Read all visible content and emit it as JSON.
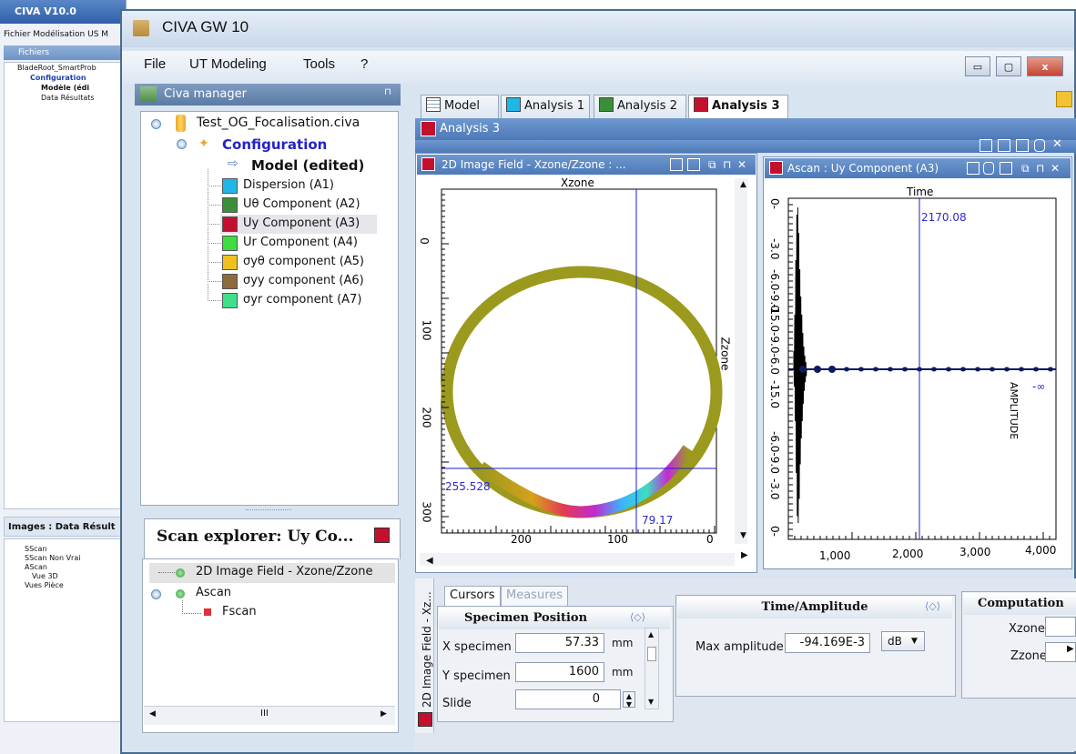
{
  "background_window": {
    "title": "CIVA V10.0",
    "menu": "Fichier  Modélisation US  M",
    "files_header": "Fichiers",
    "tree": [
      "BladeRoot_SmartProb",
      "Configuration",
      "Modèle (édi",
      "Data Résultats"
    ],
    "images_header": "Images : Data Résult",
    "images_tree": [
      "SScan",
      "SScan Non Vrai",
      "AScan",
      "Vue 3D",
      "Vues Pièce"
    ]
  },
  "window": {
    "title": "CIVA GW 10",
    "menu": [
      "File",
      "UT Modeling",
      "Tools",
      "?"
    ],
    "controls": {
      "minimize": "▭",
      "maximize": "▢",
      "close": "x"
    }
  },
  "manager": {
    "title": "Civa manager",
    "pin": "⊓",
    "file": "Test_OG_Focalisation.civa",
    "configuration": "Configuration",
    "model": "Model (edited)",
    "analyses": [
      {
        "label": "Dispersion (A1)",
        "color": "#1fb6e8"
      },
      {
        "label": "Uθ Component (A2)",
        "color": "#3b8f3b"
      },
      {
        "label": "Uy Component (A3)",
        "color": "#c4102f"
      },
      {
        "label": "Ur Component (A4)",
        "color": "#3fdc3f"
      },
      {
        "label": "σyθ component (A5)",
        "color": "#f0c020"
      },
      {
        "label": "σyy component (A6)",
        "color": "#8c6a3c"
      },
      {
        "label": "σyr component (A7)",
        "color": "#3ee08a"
      }
    ]
  },
  "scan_explorer": {
    "title": "Scan explorer: Uy Co...",
    "items": [
      "2D Image Field - Xzone/Zzone",
      "Ascan",
      "Fscan"
    ],
    "hscroll_thumb": "III"
  },
  "tabs": [
    {
      "label": "Model"
    },
    {
      "label": "Analysis 1",
      "color": "#1fb6e8"
    },
    {
      "label": "Analysis 2",
      "color": "#3b8f3b"
    },
    {
      "label": "Analysis 3",
      "color": "#c4102f"
    }
  ],
  "analysis_title": "Analysis 3",
  "image_panel": {
    "title": "2D Image Field - Xzone/Zzone : ...",
    "top_label": "Xzone",
    "right_label": "Zzone",
    "x_ticks": [
      "200",
      "100",
      "0"
    ],
    "y_ticks": [
      "0",
      "100",
      "200",
      "300"
    ],
    "cursor_h_value": "255.528",
    "cursor_v_value": "79.17",
    "vertical_tab": "2D Image Field - Xz..."
  },
  "ascan_panel": {
    "title": "Ascan : Uy Component  (A3)",
    "top_label": "Time",
    "right_label": "AMPLITUDE",
    "cursor_value": "2170.08",
    "amp_readout": "-∞",
    "x_ticks": [
      "1,000",
      "2,000",
      "3,000",
      "4,000"
    ],
    "y_ticks": [
      "0-",
      "-3.0",
      "-6.0-9.0",
      "-15.0-9.0-6.0",
      "-15.0",
      "-6.0-9.0",
      "-3.0",
      "0-"
    ]
  },
  "bottom": {
    "tabs": [
      "Cursors",
      "Measures"
    ],
    "specimen": {
      "title": "Specimen Position",
      "rows": [
        {
          "label": "X specimen",
          "value": "57.33",
          "unit": "mm"
        },
        {
          "label": "Y specimen",
          "value": "1600",
          "unit": "mm"
        },
        {
          "label": "Slide",
          "value": "0",
          "unit": ""
        }
      ]
    },
    "time_amp": {
      "title": "Time/Amplitude",
      "label": "Max amplitude",
      "value": "-94.169E-3",
      "unit": "dB"
    },
    "computation": {
      "title": "Computation",
      "rows": [
        "Xzone",
        "Zzone"
      ]
    }
  }
}
